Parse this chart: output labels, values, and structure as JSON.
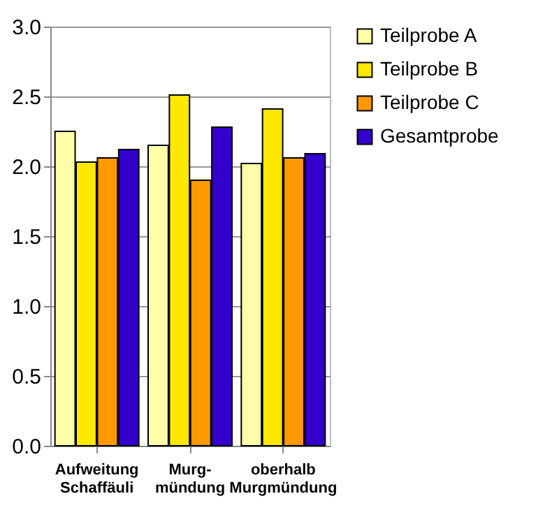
{
  "chart_data": {
    "type": "bar",
    "categories": [
      "Aufweitung\nSchaffäuli",
      "Murg-\nmündung",
      "oberhalb\nMurgmündung"
    ],
    "series": [
      {
        "name": "Teilprobe A",
        "color": "#ffffa8",
        "values": [
          2.25,
          2.15,
          2.02
        ]
      },
      {
        "name": "Teilprobe B",
        "color": "#ffe800",
        "values": [
          2.03,
          2.51,
          2.41
        ]
      },
      {
        "name": "Teilprobe C",
        "color": "#ff9900",
        "values": [
          2.06,
          1.9,
          2.06
        ]
      },
      {
        "name": "Gesamtprobe",
        "color": "#3300cc",
        "values": [
          2.12,
          2.28,
          2.09
        ]
      }
    ],
    "ylim": [
      0,
      3
    ],
    "yticks": [
      {
        "value": 0,
        "label": "0.0"
      },
      0.5,
      {
        "value": 1,
        "label": "1.0"
      },
      1.5,
      {
        "value": 2,
        "label": "2.0"
      },
      2.5,
      {
        "value": 3,
        "label": "3.0"
      }
    ],
    "grid": "y",
    "legend": "right"
  }
}
